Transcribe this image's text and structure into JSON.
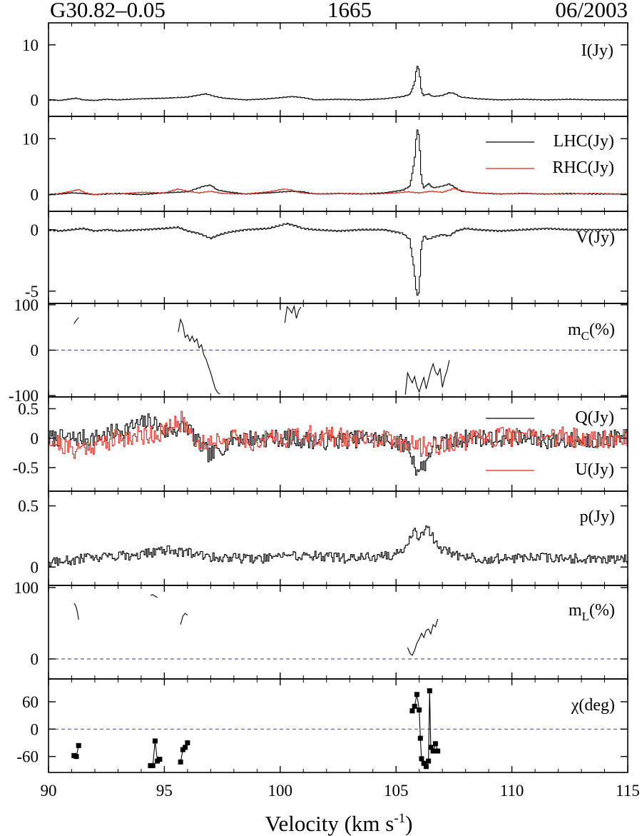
{
  "header": {
    "source": "G30.82–0.05",
    "frequency": "1665",
    "date": "06/2003"
  },
  "chart_data": {
    "type": "line",
    "xlabel": "Velocity (km s",
    "xlabel_sup": "-1",
    "xlabel_end": ")",
    "xlim": [
      90,
      115
    ],
    "xticks": [
      90,
      95,
      100,
      105,
      110,
      115
    ],
    "panels": [
      {
        "id": "I",
        "label": "I(Jy)",
        "ylim": [
          -3,
          14
        ],
        "yticks": [
          0,
          10
        ],
        "step": true,
        "series": [
          {
            "name": "",
            "color": "#000000",
            "x": [
              90.0,
              90.5,
              91.0,
              91.2,
              91.5,
              92.0,
              92.5,
              93.0,
              94.0,
              95.0,
              96.0,
              96.8,
              97.2,
              97.6,
              98.5,
              99.5,
              100.5,
              101.0,
              101.5,
              102.5,
              103.5,
              104.5,
              105.3,
              105.6,
              105.8,
              105.9,
              106.0,
              106.1,
              106.2,
              106.4,
              106.6,
              107.0,
              107.3,
              107.5,
              107.8,
              108.5,
              109.5,
              110.5,
              111.5,
              112.5,
              113.5,
              114.5,
              115.0
            ],
            "y": [
              0,
              -0.1,
              0.2,
              0.3,
              0,
              -0.1,
              0.1,
              0,
              0.2,
              0.3,
              0.5,
              1.1,
              0.6,
              0.3,
              0,
              0.2,
              0.6,
              0.4,
              0,
              0.1,
              0,
              0.2,
              0.6,
              1.0,
              3.0,
              6.2,
              5.5,
              1.5,
              0.8,
              1.1,
              0.6,
              0.8,
              1.3,
              1.2,
              0.5,
              0.2,
              0,
              0.1,
              0,
              0.1,
              0,
              0,
              0
            ]
          }
        ]
      },
      {
        "id": "LR",
        "ylim": [
          -3,
          14
        ],
        "yticks": [
          0,
          10
        ],
        "step": true,
        "series": [
          {
            "name": "LHC(Jy)",
            "color": "#000000",
            "x": [
              90.0,
              90.5,
              91.0,
              91.5,
              92.0,
              92.5,
              93.0,
              94.0,
              95.0,
              96.0,
              96.7,
              97.0,
              97.3,
              97.7,
              98.5,
              99.5,
              100.5,
              101.0,
              101.5,
              102.5,
              103.5,
              104.5,
              105.3,
              105.6,
              105.8,
              105.9,
              106.0,
              106.1,
              106.2,
              106.4,
              106.6,
              107.0,
              107.3,
              107.5,
              107.8,
              108.5,
              109.5,
              110.5,
              111.5,
              112.5,
              113.5,
              114.5,
              115.0
            ],
            "y": [
              0,
              0.1,
              0.3,
              0.2,
              0,
              0.1,
              0.2,
              0,
              0.3,
              0.5,
              1.5,
              1.7,
              0.8,
              0.5,
              0.1,
              0.3,
              0.6,
              0.5,
              0.1,
              0.2,
              0.1,
              0.3,
              0.8,
              1.5,
              6.0,
              11.8,
              10.5,
              2.5,
              1.2,
              2.0,
              1.2,
              1.5,
              1.9,
              1.4,
              0.6,
              0.3,
              0.1,
              0.2,
              0.1,
              0.2,
              0.1,
              0.1,
              0.1
            ]
          },
          {
            "name": "RHC(Jy)",
            "color": "#d42a1e",
            "x": [
              90.0,
              90.5,
              91.0,
              91.3,
              91.6,
              92.0,
              92.5,
              93.0,
              94.0,
              95.0,
              95.6,
              96.0,
              96.5,
              97.0,
              97.5,
              98.5,
              99.5,
              100.2,
              100.5,
              100.8,
              101.2,
              102.0,
              103.0,
              104.0,
              105.0,
              105.5,
              106.0,
              106.5,
              107.0,
              107.5,
              108.0,
              108.5,
              109.5,
              110.5,
              111.5,
              112.5,
              113.5,
              114.5,
              115.0
            ],
            "y": [
              0,
              0.2,
              0.6,
              0.9,
              0.3,
              0,
              0.2,
              0.1,
              0.4,
              0.3,
              1.0,
              0.6,
              0.3,
              0.6,
              0.2,
              0.1,
              0.5,
              1.0,
              0.8,
              0.4,
              0.2,
              0.1,
              0.2,
              0.1,
              0.3,
              0.5,
              0.3,
              0.6,
              0.4,
              1.1,
              0.5,
              0.3,
              0.1,
              0.2,
              0.1,
              0.1,
              0.2,
              0.1,
              0.1
            ]
          }
        ]
      },
      {
        "id": "V",
        "label": "V(Jy)",
        "ylim": [
          -6,
          1.5
        ],
        "yticks": [
          -5,
          0
        ],
        "step": true,
        "series": [
          {
            "name": "",
            "color": "#000000",
            "x": [
              90.0,
              90.5,
              91.0,
              91.5,
              92.0,
              92.5,
              93.0,
              94.0,
              95.0,
              95.6,
              96.0,
              96.5,
              97.0,
              97.4,
              97.8,
              98.5,
              99.5,
              100.3,
              100.7,
              101.0,
              101.5,
              102.5,
              103.5,
              104.5,
              105.3,
              105.6,
              105.8,
              105.9,
              106.0,
              106.1,
              106.2,
              106.4,
              106.6,
              107.0,
              107.3,
              107.6,
              108.0,
              108.5,
              109.5,
              110.5,
              111.5,
              112.5,
              113.5,
              114.5,
              115.0
            ],
            "y": [
              0,
              -0.1,
              0,
              0.1,
              -0.1,
              0,
              -0.1,
              0,
              0.1,
              0.2,
              -0.1,
              -0.3,
              -0.7,
              -0.4,
              -0.2,
              0,
              0.1,
              0.5,
              0.3,
              0.1,
              0,
              -0.1,
              0,
              0,
              -0.3,
              -0.8,
              -3.5,
              -5.5,
              -5.0,
              -1.2,
              -0.5,
              -0.8,
              -0.6,
              -0.4,
              -0.5,
              -0.1,
              0.1,
              0,
              -0.1,
              0,
              0.1,
              0,
              0,
              0,
              0
            ]
          }
        ]
      },
      {
        "id": "mC",
        "label": "m",
        "label_sub": "C",
        "label_end": "(%)",
        "ylim": [
          -103,
          103
        ],
        "yticks": [
          -100,
          0,
          100
        ],
        "zero_line": true,
        "step": false,
        "series": [
          {
            "name": "",
            "color": "#000000",
            "segments": [
              {
                "x": [
                  91.1,
                  91.2,
                  91.3
                ],
                "y": [
                  58,
                  66,
                  72
                ]
              },
              {
                "x": [
                  95.6,
                  95.7,
                  95.8,
                  95.9,
                  96.0,
                  96.1,
                  96.2,
                  96.3,
                  96.4,
                  96.5,
                  96.6,
                  96.7,
                  96.8,
                  96.9,
                  97.0,
                  97.1,
                  97.2,
                  97.3,
                  97.4
                ],
                "y": [
                  40,
                  68,
                  55,
                  28,
                  34,
                  20,
                  31,
                  18,
                  25,
                  5,
                  12,
                  -10,
                  -20,
                  -35,
                  -50,
                  -68,
                  -85,
                  -93,
                  -97
                ]
              },
              {
                "x": [
                  100.2,
                  100.3,
                  100.4,
                  100.5,
                  100.6,
                  100.7,
                  100.8,
                  100.9
                ],
                "y": [
                  60,
                  96,
                  90,
                  82,
                  97,
                  70,
                  88,
                  95
                ]
              },
              {
                "x": [
                  105.4,
                  105.5,
                  105.6,
                  105.7,
                  105.8,
                  105.9,
                  106.0,
                  106.1,
                  106.2,
                  106.3,
                  106.4,
                  106.5,
                  106.6,
                  106.7,
                  106.8,
                  106.9,
                  107.0,
                  107.1,
                  107.2,
                  107.3
                ],
                "y": [
                  -98,
                  -50,
                  -62,
                  -72,
                  -58,
                  -80,
                  -92,
                  -75,
                  -60,
                  -85,
                  -65,
                  -45,
                  -30,
                  -48,
                  -55,
                  -40,
                  -82,
                  -60,
                  -45,
                  -22
                ]
              }
            ]
          }
        ]
      },
      {
        "id": "QU",
        "ylim": [
          -0.9,
          0.7
        ],
        "yticks": [
          -0.5,
          0.0,
          0.5
        ],
        "step": true,
        "series": [
          {
            "name": "Q(Jy)",
            "color": "#000000",
            "noise": {
              "amp": 0.15,
              "seed": 7
            },
            "x": [
              90.0,
              92.0,
              94.5,
              95.0,
              96.0,
              96.5,
              97.0,
              98.0,
              100.0,
              102.0,
              104.0,
              105.5,
              105.8,
              106.0,
              106.3,
              106.6,
              107.0,
              108.0,
              110.0,
              112.0,
              115.0
            ],
            "y": [
              0,
              0,
              0.3,
              0.1,
              0.2,
              -0.1,
              -0.3,
              0,
              0,
              -0.05,
              0,
              -0.1,
              -0.45,
              -0.55,
              -0.4,
              -0.1,
              -0.1,
              0,
              0,
              -0.05,
              0
            ]
          },
          {
            "name": "U(Jy)",
            "color": "#d42a1e",
            "noise": {
              "amp": 0.17,
              "seed": 21
            },
            "x": [
              90.0,
              91.0,
              93.0,
              95.0,
              95.8,
              96.5,
              97.5,
              99.0,
              101.0,
              103.0,
              105.0,
              106.0,
              107.0,
              109.0,
              111.0,
              113.0,
              115.0
            ],
            "y": [
              0,
              -0.2,
              0,
              0.1,
              0.3,
              -0.1,
              0,
              -0.05,
              0.05,
              0,
              -0.05,
              -0.15,
              -0.1,
              0,
              0.05,
              0,
              0
            ]
          }
        ]
      },
      {
        "id": "p",
        "label": "p(Jy)",
        "ylim": [
          -0.15,
          0.62
        ],
        "yticks": [
          0.0,
          0.5
        ],
        "step": true,
        "series": [
          {
            "name": "",
            "color": "#000000",
            "noise": {
              "amp": 0.09,
              "seed": 13,
              "positive": true
            },
            "x": [
              90.0,
              92.0,
              94.0,
              95.0,
              96.0,
              97.0,
              99.0,
              101.0,
              103.0,
              105.0,
              105.5,
              105.8,
              106.0,
              106.3,
              106.5,
              106.8,
              107.5,
              109.0,
              111.0,
              113.0,
              115.0
            ],
            "y": [
              0.02,
              0.06,
              0.08,
              0.12,
              0.1,
              0.06,
              0.05,
              0.08,
              0.05,
              0.08,
              0.15,
              0.3,
              0.2,
              0.32,
              0.25,
              0.15,
              0.08,
              0.05,
              0.06,
              0.05,
              0.04
            ]
          }
        ]
      },
      {
        "id": "mL",
        "label": "m",
        "label_sub": "L",
        "label_end": "(%)",
        "ylim": [
          -28,
          103
        ],
        "yticks": [
          0,
          100
        ],
        "zero_line": true,
        "step": false,
        "series": [
          {
            "name": "",
            "color": "#000000",
            "segments": [
              {
                "x": [
                  91.1,
                  91.15,
                  91.2,
                  91.25,
                  91.3
                ],
                "y": [
                  78,
                  76,
                  72,
                  65,
                  55
                ]
              },
              {
                "x": [
                  94.4,
                  94.5,
                  94.6,
                  94.7
                ],
                "y": [
                  89,
                  90,
                  88,
                  86
                ]
              },
              {
                "x": [
                  95.7,
                  95.8,
                  95.9,
                  96.0
                ],
                "y": [
                  48,
                  60,
                  64,
                  61
                ]
              },
              {
                "x": [
                  105.5,
                  105.6,
                  105.7,
                  105.8,
                  105.9,
                  106.0,
                  106.1,
                  106.2,
                  106.3,
                  106.4,
                  106.5,
                  106.6,
                  106.7,
                  106.8
                ],
                "y": [
                  16,
                  8,
                  5,
                  12,
                  22,
                  28,
                  36,
                  30,
                  40,
                  42,
                  35,
                  48,
                  45,
                  56
                ]
              }
            ]
          }
        ]
      },
      {
        "id": "chi",
        "label": "χ(deg)",
        "ylim": [
          -95,
          110
        ],
        "yticks": [
          -60,
          0,
          60
        ],
        "zero_line": true,
        "step": false,
        "markers": true,
        "series": [
          {
            "name": "",
            "color": "#000000",
            "segments": [
              {
                "x": [
                  91.1,
                  91.2,
                  91.3
                ],
                "y": [
                  -58,
                  -60,
                  -36
                ]
              },
              {
                "x": [
                  94.4,
                  94.5,
                  94.6,
                  94.7,
                  94.8
                ],
                "y": [
                  -80,
                  -80,
                  -26,
                  -70,
                  -66
                ]
              },
              {
                "x": [
                  95.7,
                  95.8,
                  95.9,
                  96.0
                ],
                "y": [
                  -72,
                  -45,
                  -40,
                  -30
                ]
              },
              {
                "x": [
                  105.7,
                  105.8,
                  105.9,
                  106.0,
                  106.05,
                  106.1,
                  106.2,
                  106.3,
                  106.4,
                  106.45,
                  106.5,
                  106.6,
                  106.7,
                  106.8
                ],
                "y": [
                  40,
                  50,
                  76,
                  42,
                  -20,
                  -65,
                  -75,
                  -82,
                  -70,
                  84,
                  -40,
                  -48,
                  -32,
                  -48
                ]
              }
            ]
          }
        ]
      }
    ]
  }
}
